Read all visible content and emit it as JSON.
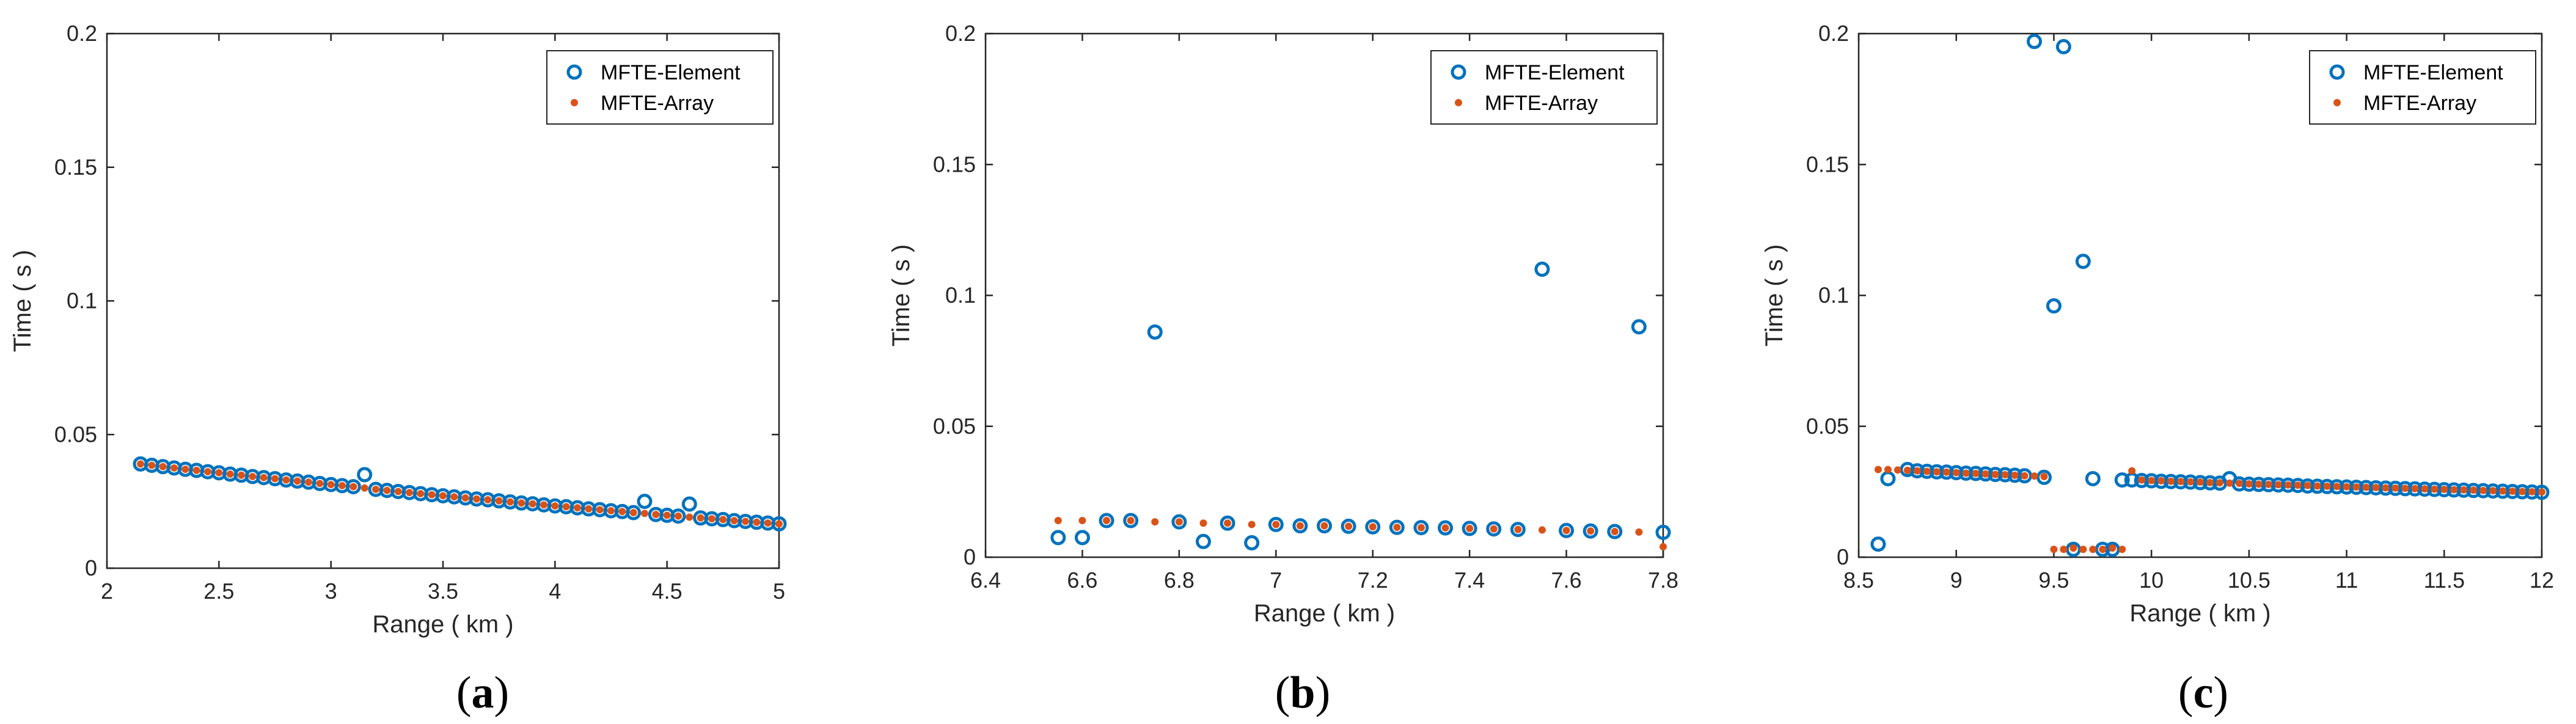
{
  "colors": {
    "element": "#0072BD",
    "array": "#D95319",
    "axis": "#262626"
  },
  "chart_data": [
    {
      "type": "scatter",
      "caption_prefix": "(",
      "caption_letter": "a",
      "caption_suffix": ")",
      "xlabel": "Range ( km )",
      "ylabel": "Time ( s )",
      "xlim": [
        2,
        5
      ],
      "ylim": [
        0,
        0.2
      ],
      "xticks": [
        2,
        2.5,
        3,
        3.5,
        4,
        4.5,
        5
      ],
      "xtick_labels": [
        "2",
        "2.5",
        "3",
        "3.5",
        "4",
        "4.5",
        "5"
      ],
      "yticks": [
        0,
        0.05,
        0.1,
        0.15,
        0.2
      ],
      "ytick_labels": [
        "0",
        "0.05",
        "0.1",
        "0.15",
        "0.2"
      ],
      "legend_position": "top-right",
      "series": [
        {
          "name": "MFTE-Element",
          "marker": "open-circle",
          "x": [
            2.15,
            2.2,
            2.25,
            2.3,
            2.35,
            2.4,
            2.45,
            2.5,
            2.55,
            2.6,
            2.65,
            2.7,
            2.75,
            2.8,
            2.85,
            2.9,
            2.95,
            3.0,
            3.05,
            3.1,
            3.15,
            3.2,
            3.25,
            3.3,
            3.35,
            3.4,
            3.45,
            3.5,
            3.55,
            3.6,
            3.65,
            3.7,
            3.75,
            3.8,
            3.85,
            3.9,
            3.95,
            4.0,
            4.05,
            4.1,
            4.15,
            4.2,
            4.25,
            4.3,
            4.35,
            4.4,
            4.45,
            4.5,
            4.55,
            4.6,
            4.65,
            4.7,
            4.75,
            4.8,
            4.85,
            4.9,
            4.95,
            5.0
          ],
          "y": [
            0.039,
            0.0385,
            0.038,
            0.0375,
            0.037,
            0.0366,
            0.0361,
            0.0357,
            0.0352,
            0.0348,
            0.0343,
            0.0339,
            0.0335,
            0.033,
            0.0326,
            0.0322,
            0.0317,
            0.0313,
            0.0309,
            0.0305,
            0.035,
            0.0295,
            0.0291,
            0.0287,
            0.0283,
            0.0279,
            0.0275,
            0.0271,
            0.0267,
            0.0263,
            0.0259,
            0.0256,
            0.0252,
            0.0248,
            0.0244,
            0.0241,
            0.0237,
            0.0233,
            0.023,
            0.0226,
            0.0222,
            0.0219,
            0.0215,
            0.0212,
            0.0208,
            0.025,
            0.0201,
            0.0198,
            0.0195,
            0.024,
            0.0188,
            0.0185,
            0.0182,
            0.0178,
            0.0175,
            0.0172,
            0.0169,
            0.0166
          ]
        },
        {
          "name": "MFTE-Array",
          "marker": "filled-dot",
          "x": [
            2.15,
            2.2,
            2.25,
            2.3,
            2.35,
            2.4,
            2.45,
            2.5,
            2.55,
            2.6,
            2.65,
            2.7,
            2.75,
            2.8,
            2.85,
            2.9,
            2.95,
            3.0,
            3.05,
            3.1,
            3.15,
            3.2,
            3.25,
            3.3,
            3.35,
            3.4,
            3.45,
            3.5,
            3.55,
            3.6,
            3.65,
            3.7,
            3.75,
            3.8,
            3.85,
            3.9,
            3.95,
            4.0,
            4.05,
            4.1,
            4.15,
            4.2,
            4.25,
            4.3,
            4.35,
            4.4,
            4.45,
            4.5,
            4.55,
            4.6,
            4.65,
            4.7,
            4.75,
            4.8,
            4.85,
            4.9,
            4.95,
            5.0
          ],
          "y": [
            0.039,
            0.0385,
            0.038,
            0.0375,
            0.037,
            0.0366,
            0.0361,
            0.0357,
            0.0352,
            0.0348,
            0.0343,
            0.0339,
            0.0335,
            0.033,
            0.0326,
            0.0322,
            0.0317,
            0.0313,
            0.0309,
            0.0305,
            0.03,
            0.0295,
            0.0291,
            0.0287,
            0.0283,
            0.0279,
            0.0275,
            0.0271,
            0.0267,
            0.0263,
            0.0259,
            0.0256,
            0.0252,
            0.0248,
            0.0244,
            0.0241,
            0.0237,
            0.0233,
            0.023,
            0.0226,
            0.0222,
            0.0219,
            0.0215,
            0.0212,
            0.0208,
            0.0205,
            0.0201,
            0.0198,
            0.0195,
            0.0191,
            0.0188,
            0.0185,
            0.0182,
            0.0178,
            0.0175,
            0.0172,
            0.0169,
            0.0166
          ]
        }
      ]
    },
    {
      "type": "scatter",
      "caption_prefix": "(",
      "caption_letter": "b",
      "caption_suffix": ")",
      "xlabel": "Range ( km )",
      "ylabel": "Time ( s )",
      "xlim": [
        6.4,
        7.8
      ],
      "ylim": [
        0,
        0.2
      ],
      "xticks": [
        6.4,
        6.6,
        6.8,
        7.0,
        7.2,
        7.4,
        7.6,
        7.8
      ],
      "xtick_labels": [
        "6.4",
        "6.6",
        "6.8",
        "7",
        "7.2",
        "7.4",
        "7.6",
        "7.8"
      ],
      "yticks": [
        0,
        0.05,
        0.1,
        0.15,
        0.2
      ],
      "ytick_labels": [
        "0",
        "0.05",
        "0.1",
        "0.15",
        "0.2"
      ],
      "legend_position": "top-right",
      "series": [
        {
          "name": "MFTE-Element",
          "marker": "open-circle",
          "x": [
            6.55,
            6.6,
            6.65,
            6.7,
            6.75,
            6.8,
            6.85,
            6.9,
            6.95,
            7.0,
            7.05,
            7.1,
            7.15,
            7.2,
            7.25,
            7.3,
            7.35,
            7.4,
            7.45,
            7.5,
            7.55,
            7.6,
            7.65,
            7.7,
            7.75,
            7.8
          ],
          "y": [
            0.0075,
            0.0075,
            0.014,
            0.014,
            0.086,
            0.0135,
            0.006,
            0.013,
            0.0055,
            0.0125,
            0.012,
            0.012,
            0.0118,
            0.0116,
            0.0114,
            0.0113,
            0.0112,
            0.011,
            0.0108,
            0.0106,
            0.11,
            0.0102,
            0.01,
            0.0098,
            0.088,
            0.0095
          ]
        },
        {
          "name": "MFTE-Array",
          "marker": "filled-dot",
          "x": [
            6.55,
            6.6,
            6.65,
            6.7,
            6.75,
            6.8,
            6.85,
            6.9,
            6.95,
            7.0,
            7.05,
            7.1,
            7.15,
            7.2,
            7.25,
            7.3,
            7.35,
            7.4,
            7.45,
            7.5,
            7.55,
            7.6,
            7.65,
            7.7,
            7.75,
            7.8
          ],
          "y": [
            0.014,
            0.014,
            0.014,
            0.014,
            0.0135,
            0.0135,
            0.013,
            0.013,
            0.0125,
            0.0125,
            0.012,
            0.012,
            0.0118,
            0.0116,
            0.0114,
            0.0113,
            0.0112,
            0.011,
            0.0108,
            0.0106,
            0.0104,
            0.0102,
            0.01,
            0.0098,
            0.0096,
            0.004
          ]
        }
      ]
    },
    {
      "type": "scatter",
      "caption_prefix": "(",
      "caption_letter": "c",
      "caption_suffix": ")",
      "xlabel": "Range ( km )",
      "ylabel": "Time ( s )",
      "xlim": [
        8.5,
        12
      ],
      "ylim": [
        0,
        0.2
      ],
      "xticks": [
        8.5,
        9,
        9.5,
        10,
        10.5,
        11,
        11.5,
        12
      ],
      "xtick_labels": [
        "8.5",
        "9",
        "9.5",
        "10",
        "10.5",
        "11",
        "11.5",
        "12"
      ],
      "yticks": [
        0,
        0.05,
        0.1,
        0.15,
        0.2
      ],
      "ytick_labels": [
        "0",
        "0.05",
        "0.1",
        "0.15",
        "0.2"
      ],
      "legend_position": "top-right",
      "series": [
        {
          "name": "MFTE-Element",
          "marker": "open-circle",
          "x": [
            8.6,
            8.65,
            8.75,
            8.8,
            8.85,
            8.9,
            8.95,
            9.0,
            9.05,
            9.1,
            9.15,
            9.2,
            9.25,
            9.3,
            9.35,
            9.4,
            9.45,
            9.5,
            9.55,
            9.6,
            9.65,
            9.7,
            9.75,
            9.8,
            9.85,
            9.9,
            9.95,
            10.0,
            10.05,
            10.1,
            10.15,
            10.2,
            10.25,
            10.3,
            10.35,
            10.4,
            10.45,
            10.5,
            10.55,
            10.6,
            10.65,
            10.7,
            10.75,
            10.8,
            10.85,
            10.9,
            10.95,
            11.0,
            11.05,
            11.1,
            11.15,
            11.2,
            11.25,
            11.3,
            11.35,
            11.4,
            11.45,
            11.5,
            11.55,
            11.6,
            11.65,
            11.7,
            11.75,
            11.8,
            11.85,
            11.9,
            11.95,
            12.0
          ],
          "y": [
            0.005,
            0.03,
            0.0335,
            0.033,
            0.0328,
            0.0326,
            0.0325,
            0.0323,
            0.0321,
            0.032,
            0.0318,
            0.0316,
            0.0315,
            0.0313,
            0.0311,
            0.197,
            0.0305,
            0.096,
            0.195,
            0.003,
            0.113,
            0.03,
            0.003,
            0.003,
            0.0295,
            0.0295,
            0.0293,
            0.0292,
            0.029,
            0.0289,
            0.0288,
            0.0287,
            0.0285,
            0.0284,
            0.0283,
            0.03,
            0.028,
            0.0279,
            0.0278,
            0.0277,
            0.0276,
            0.0275,
            0.0274,
            0.0272,
            0.0271,
            0.027,
            0.0269,
            0.0268,
            0.0267,
            0.0266,
            0.0265,
            0.0264,
            0.0263,
            0.0262,
            0.0261,
            0.026,
            0.0259,
            0.0258,
            0.0257,
            0.0256,
            0.0255,
            0.0254,
            0.0253,
            0.0252,
            0.0251,
            0.025,
            0.0249,
            0.0248
          ]
        },
        {
          "name": "MFTE-Array",
          "marker": "filled-dot",
          "x": [
            8.6,
            8.65,
            8.7,
            8.75,
            8.8,
            8.85,
            8.9,
            8.95,
            9.0,
            9.05,
            9.1,
            9.15,
            9.2,
            9.25,
            9.3,
            9.35,
            9.4,
            9.45,
            9.5,
            9.55,
            9.6,
            9.65,
            9.7,
            9.75,
            9.8,
            9.85,
            9.9,
            9.95,
            10.0,
            10.05,
            10.1,
            10.15,
            10.2,
            10.25,
            10.3,
            10.35,
            10.4,
            10.45,
            10.5,
            10.55,
            10.6,
            10.65,
            10.7,
            10.75,
            10.8,
            10.85,
            10.9,
            10.95,
            11.0,
            11.05,
            11.1,
            11.15,
            11.2,
            11.25,
            11.3,
            11.35,
            11.4,
            11.45,
            11.5,
            11.55,
            11.6,
            11.65,
            11.7,
            11.75,
            11.8,
            11.85,
            11.9,
            11.95,
            12.0
          ],
          "y": [
            0.0335,
            0.0335,
            0.0333,
            0.0332,
            0.033,
            0.0328,
            0.0326,
            0.0325,
            0.0323,
            0.0321,
            0.032,
            0.0318,
            0.0316,
            0.0315,
            0.0313,
            0.0311,
            0.031,
            0.0308,
            0.003,
            0.003,
            0.0035,
            0.003,
            0.003,
            0.003,
            0.0035,
            0.003,
            0.033,
            0.0295,
            0.0293,
            0.0292,
            0.029,
            0.0289,
            0.0288,
            0.0287,
            0.0285,
            0.0284,
            0.0283,
            0.0282,
            0.028,
            0.0279,
            0.0278,
            0.0277,
            0.0276,
            0.0275,
            0.0274,
            0.0272,
            0.0271,
            0.027,
            0.0269,
            0.0268,
            0.0267,
            0.0266,
            0.0265,
            0.0264,
            0.0263,
            0.0262,
            0.0261,
            0.026,
            0.0259,
            0.0258,
            0.0257,
            0.0256,
            0.0255,
            0.0254,
            0.0253,
            0.0252,
            0.0251,
            0.025,
            0.0249
          ]
        }
      ]
    }
  ]
}
